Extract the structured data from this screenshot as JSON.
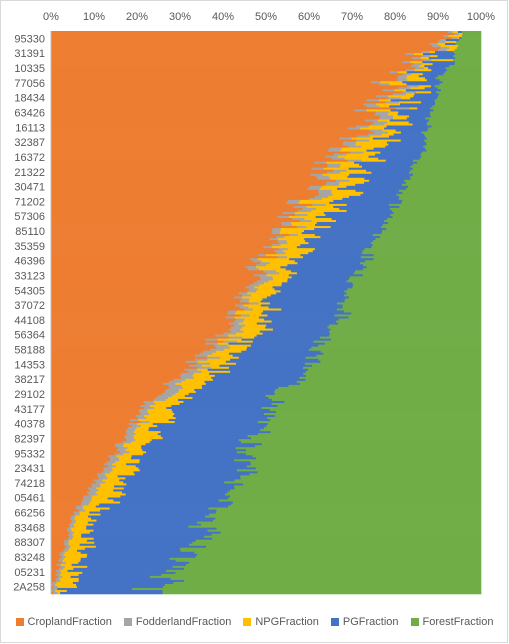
{
  "chart_data": {
    "type": "bar",
    "orientation": "horizontal",
    "stacked": "100%",
    "x_ticks": [
      "0%",
      "10%",
      "20%",
      "30%",
      "40%",
      "50%",
      "60%",
      "70%",
      "80%",
      "90%",
      "100%"
    ],
    "x_axis_position": "top",
    "category_labels_shown": [
      "95330",
      "31391",
      "10335",
      "77056",
      "18434",
      "63426",
      "16113",
      "32387",
      "16372",
      "21322",
      "30471",
      "71202",
      "57306",
      "85110",
      "35359",
      "46396",
      "33123",
      "54305",
      "37072",
      "44108",
      "56364",
      "58188",
      "14353",
      "38217",
      "29102",
      "43177",
      "40378",
      "82397",
      "95332",
      "23431",
      "74218",
      "05461",
      "66256",
      "83468",
      "88307",
      "83248",
      "05231",
      "2A258"
    ],
    "legend_position": "bottom",
    "grid": false,
    "series": [
      {
        "name": "CroplandFraction",
        "color": "#ED7D31",
        "values": [
          0.93,
          0.88,
          0.85,
          0.8,
          0.77,
          0.75,
          0.72,
          0.7,
          0.67,
          0.64,
          0.62,
          0.59,
          0.56,
          0.54,
          0.51,
          0.49,
          0.47,
          0.45,
          0.44,
          0.42,
          0.39,
          0.36,
          0.33,
          0.29,
          0.24,
          0.21,
          0.19,
          0.16,
          0.14,
          0.12,
          0.09,
          0.07,
          0.05,
          0.04,
          0.03,
          0.02,
          0.01,
          0.0
        ]
      },
      {
        "name": "FodderlandFraction",
        "color": "#A5A5A5",
        "values": [
          0.01,
          0.02,
          0.02,
          0.02,
          0.03,
          0.03,
          0.03,
          0.03,
          0.03,
          0.03,
          0.03,
          0.03,
          0.03,
          0.02,
          0.02,
          0.02,
          0.03,
          0.02,
          0.02,
          0.02,
          0.03,
          0.03,
          0.03,
          0.03,
          0.03,
          0.02,
          0.02,
          0.02,
          0.02,
          0.02,
          0.02,
          0.02,
          0.01,
          0.01,
          0.01,
          0.01,
          0.01,
          0.01
        ]
      },
      {
        "name": "NPGFraction",
        "color": "#FFC000",
        "values": [
          0.01,
          0.02,
          0.03,
          0.03,
          0.04,
          0.04,
          0.05,
          0.05,
          0.06,
          0.06,
          0.06,
          0.06,
          0.06,
          0.06,
          0.06,
          0.06,
          0.05,
          0.05,
          0.05,
          0.05,
          0.05,
          0.05,
          0.05,
          0.05,
          0.05,
          0.05,
          0.05,
          0.05,
          0.05,
          0.05,
          0.05,
          0.05,
          0.04,
          0.04,
          0.04,
          0.03,
          0.03,
          0.02
        ]
      },
      {
        "name": "PGFraction",
        "color": "#4472C4",
        "values": [
          0.01,
          0.02,
          0.04,
          0.05,
          0.06,
          0.07,
          0.08,
          0.09,
          0.1,
          0.11,
          0.12,
          0.13,
          0.14,
          0.15,
          0.16,
          0.16,
          0.17,
          0.17,
          0.17,
          0.18,
          0.18,
          0.18,
          0.19,
          0.2,
          0.21,
          0.22,
          0.23,
          0.24,
          0.25,
          0.26,
          0.26,
          0.27,
          0.27,
          0.27,
          0.26,
          0.24,
          0.22,
          0.2
        ]
      },
      {
        "name": "ForestFraction",
        "color": "#70AD47",
        "values": [
          0.04,
          0.06,
          0.06,
          0.1,
          0.1,
          0.11,
          0.12,
          0.13,
          0.14,
          0.16,
          0.17,
          0.19,
          0.21,
          0.23,
          0.25,
          0.27,
          0.28,
          0.31,
          0.32,
          0.33,
          0.35,
          0.38,
          0.4,
          0.43,
          0.47,
          0.5,
          0.51,
          0.53,
          0.54,
          0.55,
          0.58,
          0.59,
          0.63,
          0.64,
          0.66,
          0.7,
          0.73,
          0.77
        ]
      }
    ]
  }
}
